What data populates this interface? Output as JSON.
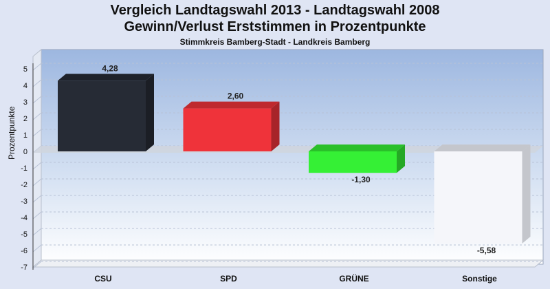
{
  "chart_data": {
    "type": "bar",
    "title": "Vergleich Landtagswahl 2013 - Landtagswahl 2008",
    "subtitle_line": "Gewinn/Verlust Erststimmen in Prozentpunkte",
    "subtitle": "Stimmkreis Bamberg-Stadt - Landkreis Bamberg",
    "ylabel": "Prozentpunkte",
    "xlabel": "",
    "ylim": [
      -7,
      5
    ],
    "yticks": [
      "5",
      "4",
      "3",
      "2",
      "1",
      "0",
      "-1",
      "-2",
      "-3",
      "-4",
      "-5",
      "-6",
      "-7"
    ],
    "categories": [
      "CSU",
      "SPD",
      "GRÜNE",
      "Sonstige"
    ],
    "values": [
      4.28,
      2.6,
      -1.3,
      -5.58
    ],
    "value_labels": [
      "4,28",
      "2,60",
      "-1,30",
      "-5,58"
    ],
    "colors": [
      "#262b35",
      "#ef333a",
      "#35f035",
      "#f5f6fa"
    ],
    "grid": true,
    "legend": "none"
  }
}
